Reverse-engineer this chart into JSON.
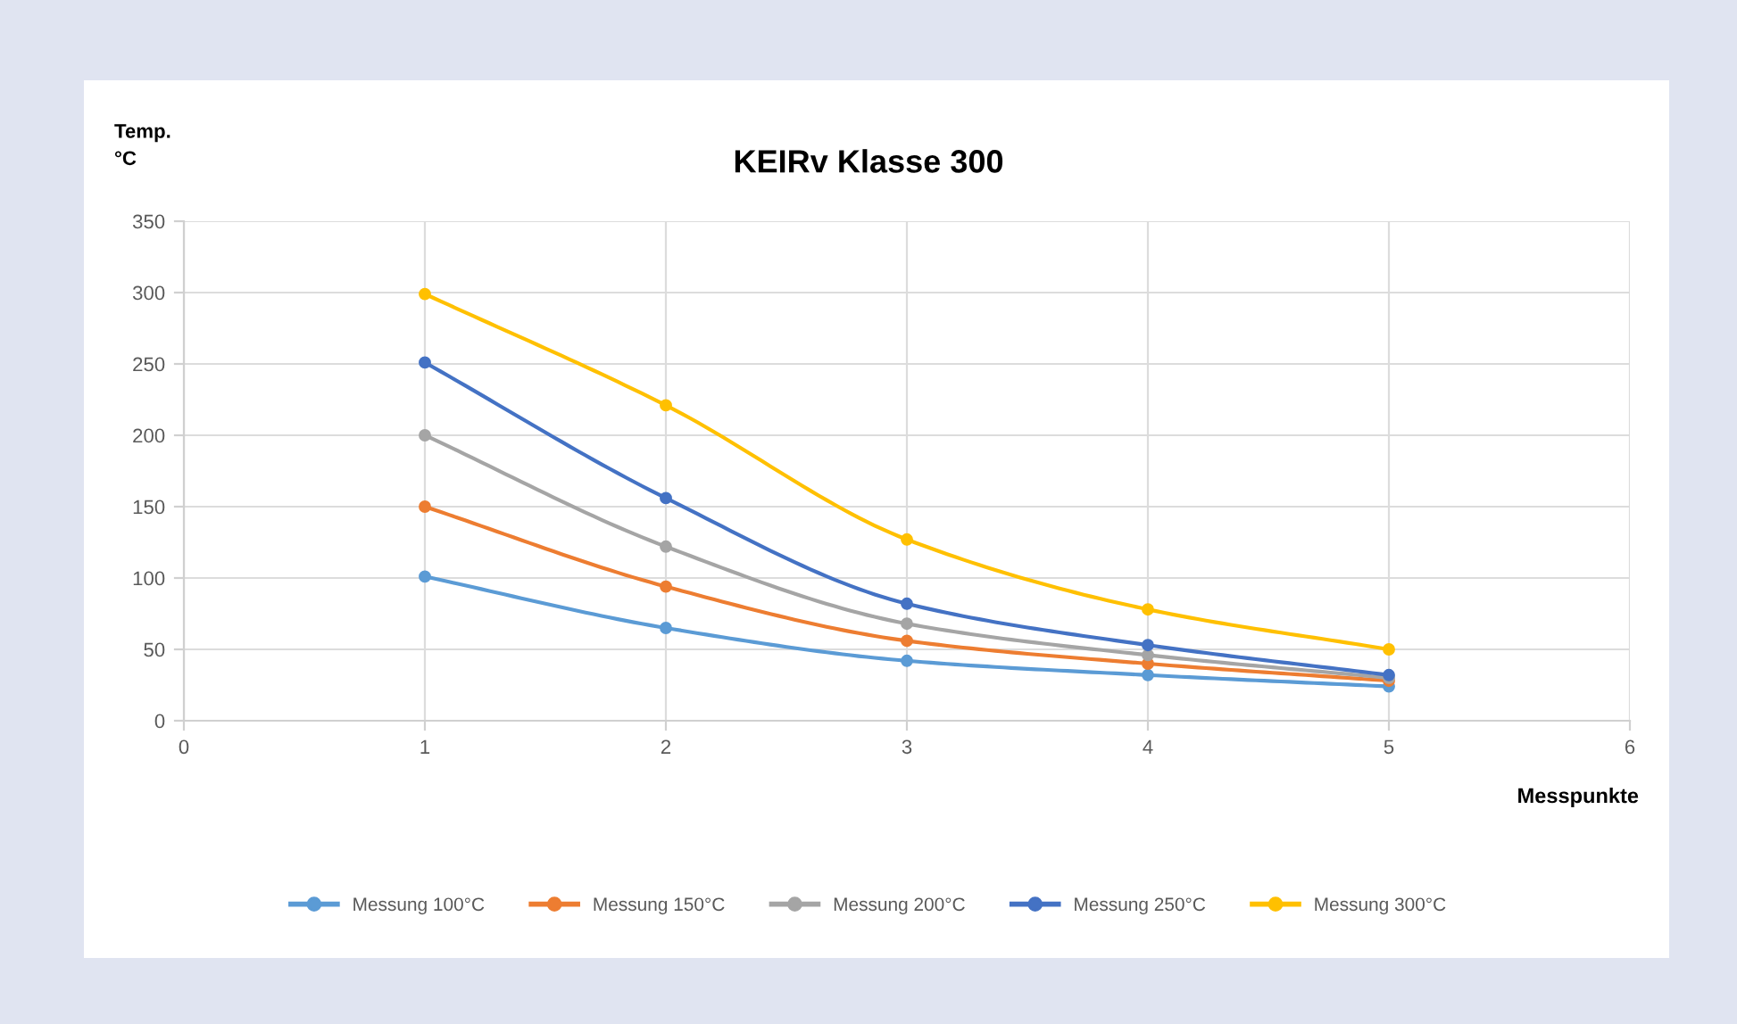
{
  "chart_data": {
    "type": "line",
    "title": "KEIRv Klasse 300",
    "xlabel": "Messpunkte",
    "ylabel": "Temp.\n°C",
    "x": [
      1,
      2,
      3,
      4,
      5
    ],
    "series": [
      {
        "name": "Messung 100°C",
        "color": "#5b9bd5",
        "values": [
          101,
          65,
          42,
          32,
          24
        ]
      },
      {
        "name": "Messung 150°C",
        "color": "#ed7d31",
        "values": [
          150,
          94,
          56,
          40,
          28
        ]
      },
      {
        "name": "Messung 200°C",
        "color": "#a5a5a5",
        "values": [
          200,
          122,
          68,
          46,
          30
        ]
      },
      {
        "name": "Messung 250°C",
        "color": "#4472c4",
        "values": [
          251,
          156,
          82,
          53,
          32
        ]
      },
      {
        "name": "Messung 300°C",
        "color": "#ffc000",
        "values": [
          299,
          221,
          127,
          78,
          50
        ]
      }
    ],
    "xlim": [
      0,
      6
    ],
    "xticks": [
      0,
      1,
      2,
      3,
      4,
      5,
      6
    ],
    "ylim": [
      0,
      350
    ],
    "yticks": [
      0,
      50,
      100,
      150,
      200,
      250,
      300,
      350
    ],
    "grid": true,
    "legend": "bottom",
    "marker": "circle",
    "line_style": "solid"
  }
}
